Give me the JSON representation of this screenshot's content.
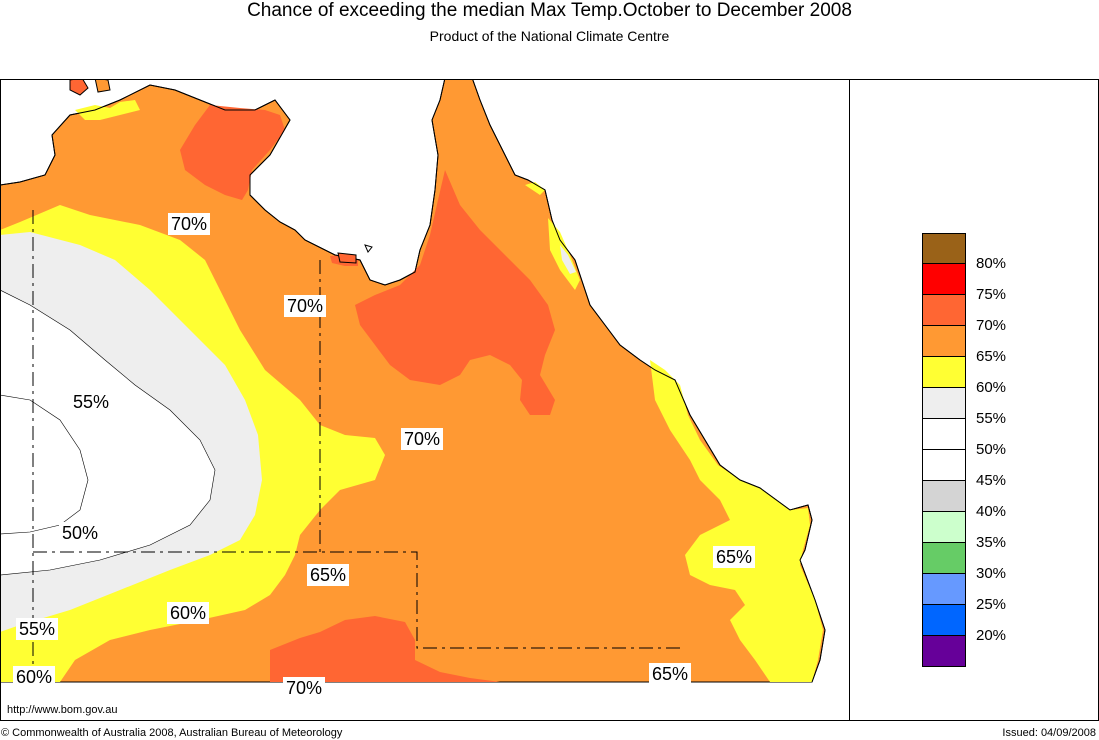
{
  "header": {
    "title": "Chance of exceeding the median Max Temp.October to December 2008",
    "subtitle": "Product of the National Climate Centre"
  },
  "colors": {
    "c80": "#9a6218",
    "c75": "#ff0000",
    "c70": "#ff6633",
    "c65": "#ff9933",
    "c60": "#ffff33",
    "c55": "#eeeeee",
    "c50": "#ffffff",
    "c45": "#ffffff",
    "c40": "#d4d4d4",
    "c35": "#ccffcc",
    "c30": "#66cc66",
    "c25": "#6699ff",
    "c20": "#0066ff",
    "c15": "#660099"
  },
  "legend": {
    "swatches": [
      "#9a6218",
      "#ff0000",
      "#ff6633",
      "#ff9933",
      "#ffff33",
      "#eeeeee",
      "#ffffff",
      "#ffffff",
      "#d4d4d4",
      "#ccffcc",
      "#66cc66",
      "#6699ff",
      "#0066ff",
      "#660099"
    ],
    "labels": [
      "80%",
      "75%",
      "70%",
      "65%",
      "60%",
      "55%",
      "50%",
      "45%",
      "40%",
      "35%",
      "30%",
      "25%",
      "20%"
    ]
  },
  "contour_labels": {
    "l1": "70%",
    "l2": "70%",
    "l3": "70%",
    "l4": "55%",
    "l5": "50%",
    "l6": "65%",
    "l7": "60%",
    "l8": "55%",
    "l9": "60%",
    "l10": "70%",
    "l11": "65%",
    "l12": "65%"
  },
  "footer": {
    "url": "http://www.bom.gov.au",
    "copyright": "© Commonwealth of Australia 2008, Australian Bureau of Meteorology",
    "issued": "Issued: 04/09/2008"
  }
}
